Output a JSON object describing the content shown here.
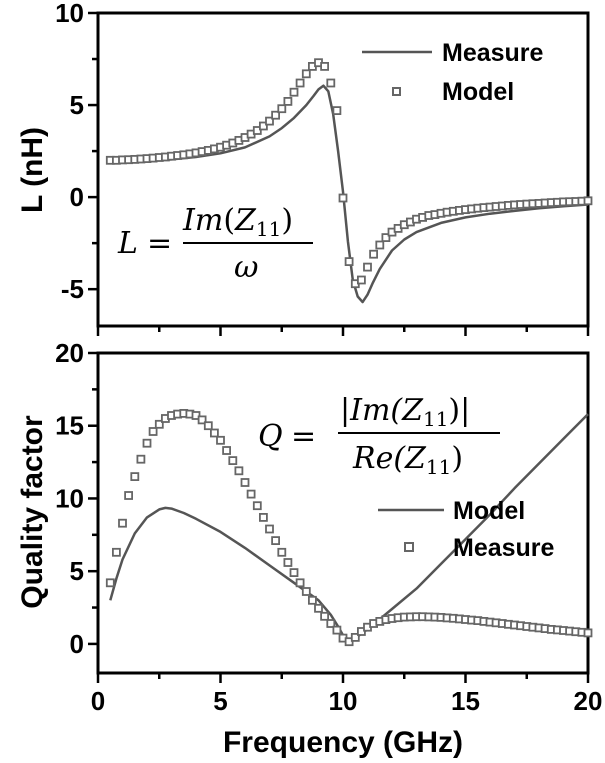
{
  "chart_data": [
    {
      "type": "line",
      "ylabel": "L (nH)",
      "xlim": [
        0,
        20
      ],
      "ylim": [
        -7,
        10
      ],
      "yticks": [
        "10",
        "5",
        "0",
        "-5"
      ],
      "grid": false,
      "legend_position": "top-right",
      "legend": [
        "Measure",
        "Model"
      ],
      "equation": {
        "lhs": "L",
        "numerator_fn": "Im",
        "arg_main": "Z",
        "arg_sub": "11",
        "denominator": "ω"
      },
      "series": [
        {
          "name": "Measure",
          "style": "line",
          "x": [
            0.5,
            1,
            2,
            3,
            4,
            5,
            6,
            7,
            7.5,
            8,
            8.5,
            8.8,
            9,
            9.2,
            9.4,
            9.6,
            9.8,
            10,
            10.2,
            10.4,
            10.6,
            10.8,
            11,
            11.2,
            11.5,
            12,
            12.5,
            13,
            14,
            15,
            16,
            17,
            18,
            19,
            20
          ],
          "y": [
            1.9,
            1.92,
            1.98,
            2.05,
            2.18,
            2.38,
            2.7,
            3.3,
            3.75,
            4.3,
            5.0,
            5.5,
            5.85,
            6.05,
            5.75,
            4.5,
            2.5,
            0.3,
            -2.4,
            -4.5,
            -5.4,
            -5.7,
            -5.3,
            -4.7,
            -3.9,
            -2.9,
            -2.3,
            -1.9,
            -1.4,
            -1.1,
            -0.9,
            -0.75,
            -0.6,
            -0.5,
            -0.4
          ]
        },
        {
          "name": "Model",
          "style": "markers",
          "x": [
            0.5,
            0.75,
            1,
            1.25,
            1.5,
            1.75,
            2,
            2.25,
            2.5,
            2.75,
            3,
            3.25,
            3.5,
            3.75,
            4,
            4.25,
            4.5,
            4.75,
            5,
            5.25,
            5.5,
            5.75,
            6,
            6.25,
            6.5,
            6.75,
            7,
            7.25,
            7.5,
            7.75,
            8,
            8.25,
            8.5,
            8.75,
            9,
            9.25,
            9.5,
            9.75,
            10,
            10.25,
            10.5,
            10.75,
            11,
            11.25,
            11.5,
            11.75,
            12,
            12.25,
            12.5,
            12.75,
            13,
            13.25,
            13.5,
            13.75,
            14,
            14.25,
            14.5,
            14.75,
            15,
            15.25,
            15.5,
            15.75,
            16,
            16.25,
            16.5,
            16.75,
            17,
            17.25,
            17.5,
            17.75,
            18,
            18.25,
            18.5,
            18.75,
            19,
            19.25,
            19.5,
            19.75,
            20
          ],
          "y": [
            2.0,
            2.0,
            2.02,
            2.03,
            2.05,
            2.07,
            2.09,
            2.12,
            2.15,
            2.18,
            2.22,
            2.26,
            2.3,
            2.35,
            2.4,
            2.47,
            2.54,
            2.62,
            2.71,
            2.82,
            2.94,
            3.08,
            3.24,
            3.42,
            3.62,
            3.86,
            4.13,
            4.45,
            4.8,
            5.2,
            5.7,
            6.2,
            6.7,
            7.1,
            7.3,
            7.1,
            6.2,
            4.7,
            -0.05,
            -3.5,
            -4.7,
            -4.5,
            -3.8,
            -3.1,
            -2.6,
            -2.2,
            -1.9,
            -1.7,
            -1.5,
            -1.35,
            -1.2,
            -1.1,
            -1.0,
            -0.95,
            -0.88,
            -0.82,
            -0.77,
            -0.72,
            -0.68,
            -0.64,
            -0.6,
            -0.57,
            -0.54,
            -0.51,
            -0.48,
            -0.45,
            -0.42,
            -0.4,
            -0.38,
            -0.36,
            -0.34,
            -0.32,
            -0.3,
            -0.28,
            -0.26,
            -0.25,
            -0.24,
            -0.22,
            -0.2
          ]
        }
      ]
    },
    {
      "type": "line",
      "xlabel": "Frequency (GHz)",
      "ylabel": "Quality factor",
      "xlim": [
        0,
        20
      ],
      "ylim": [
        -2,
        20
      ],
      "xticks": [
        "0",
        "5",
        "10",
        "15",
        "20"
      ],
      "yticks": [
        "20",
        "15",
        "10",
        "5",
        "0"
      ],
      "grid": false,
      "legend_position": "right",
      "legend": [
        "Model",
        "Measure"
      ],
      "equation": {
        "lhs": "Q",
        "numerator": "|Im(Z",
        "numerator_sub": "11",
        "numerator_end": ")|",
        "denominator": "Re(Z",
        "denominator_sub": "11",
        "denominator_end": ")"
      },
      "series": [
        {
          "name": "Model",
          "style": "line",
          "x": [
            0.5,
            0.75,
            1,
            1.5,
            2,
            2.5,
            2.75,
            3,
            3.5,
            4,
            5,
            6,
            7,
            8,
            9,
            9.5,
            9.8,
            10,
            10.2,
            10.5,
            11,
            12,
            13,
            14,
            15,
            16,
            17,
            18,
            19,
            20
          ],
          "y": [
            3.0,
            4.5,
            5.8,
            7.6,
            8.7,
            9.25,
            9.35,
            9.3,
            9.0,
            8.6,
            7.7,
            6.6,
            5.4,
            4.2,
            3.0,
            2.0,
            1.2,
            0.6,
            0.3,
            0.4,
            1.0,
            2.4,
            3.8,
            5.5,
            7.2,
            8.9,
            10.7,
            12.4,
            14.1,
            15.8
          ]
        },
        {
          "name": "Measure",
          "style": "markers",
          "x": [
            0.5,
            0.75,
            1,
            1.25,
            1.5,
            1.75,
            2,
            2.25,
            2.5,
            2.75,
            3,
            3.25,
            3.5,
            3.75,
            4,
            4.25,
            4.5,
            4.75,
            5,
            5.25,
            5.5,
            5.75,
            6,
            6.25,
            6.5,
            6.75,
            7,
            7.25,
            7.5,
            7.75,
            8,
            8.25,
            8.5,
            8.75,
            9,
            9.25,
            9.5,
            9.75,
            10,
            10.25,
            10.5,
            10.75,
            11,
            11.25,
            11.5,
            11.75,
            12,
            12.25,
            12.5,
            12.75,
            13,
            13.25,
            13.5,
            13.75,
            14,
            14.25,
            14.5,
            14.75,
            15,
            15.25,
            15.5,
            15.75,
            16,
            16.25,
            16.5,
            16.75,
            17,
            17.25,
            17.5,
            17.75,
            18,
            18.25,
            18.5,
            18.75,
            19,
            19.25,
            19.5,
            19.75,
            20
          ],
          "y": [
            4.2,
            6.3,
            8.3,
            10.2,
            11.5,
            12.7,
            13.8,
            14.6,
            15.1,
            15.5,
            15.7,
            15.8,
            15.85,
            15.8,
            15.7,
            15.4,
            15.0,
            14.5,
            14.0,
            13.3,
            12.6,
            11.9,
            11.1,
            10.3,
            9.5,
            8.7,
            7.9,
            7.1,
            6.3,
            5.6,
            4.9,
            4.2,
            3.6,
            3.0,
            2.45,
            1.9,
            1.4,
            0.95,
            0.4,
            0.15,
            0.45,
            0.85,
            1.15,
            1.4,
            1.55,
            1.67,
            1.75,
            1.8,
            1.84,
            1.86,
            1.87,
            1.87,
            1.86,
            1.84,
            1.82,
            1.79,
            1.76,
            1.72,
            1.68,
            1.64,
            1.6,
            1.55,
            1.5,
            1.45,
            1.4,
            1.35,
            1.3,
            1.25,
            1.2,
            1.15,
            1.1,
            1.05,
            1.0,
            0.96,
            0.92,
            0.88,
            0.84,
            0.8,
            0.76
          ]
        }
      ]
    }
  ]
}
